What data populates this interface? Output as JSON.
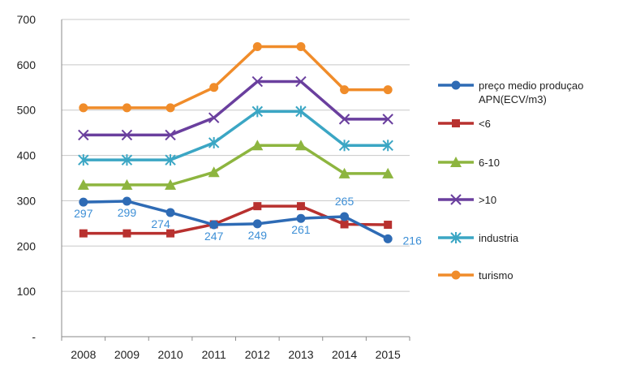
{
  "chart_data": {
    "type": "line",
    "title": "",
    "xlabel": "",
    "ylabel": "",
    "categories": [
      "2008",
      "2009",
      "2010",
      "2011",
      "2012",
      "2013",
      "2014",
      "2015"
    ],
    "ylim": [
      0,
      700
    ],
    "y_ticks": [
      "-",
      "100",
      "200",
      "300",
      "400",
      "500",
      "600",
      "700"
    ],
    "grid": true,
    "legend_position": "right",
    "series": [
      {
        "name": "preço medio produçao APN(ECV/m3)",
        "legend_lines": [
          "preço medio produçao",
          "APN(ECV/m3)"
        ],
        "color": "#2e6bb5",
        "marker": "circle",
        "values": [
          297,
          299,
          274,
          247,
          249,
          261,
          265,
          216
        ],
        "labels": [
          "297",
          "299",
          "274",
          "247",
          "249",
          "261",
          "265",
          "216"
        ],
        "label_color": "#3d8fd6"
      },
      {
        "name": "<6",
        "legend_lines": [
          "<6"
        ],
        "color": "#b8312f",
        "marker": "square",
        "values": [
          228,
          228,
          228,
          248,
          288,
          288,
          248,
          247
        ]
      },
      {
        "name": "6-10",
        "legend_lines": [
          "6-10"
        ],
        "color": "#8db53f",
        "marker": "triangle",
        "values": [
          335,
          335,
          335,
          363,
          422,
          422,
          360,
          360
        ]
      },
      {
        "name": ">10",
        "legend_lines": [
          ">10"
        ],
        "color": "#6a3f9e",
        "marker": "x",
        "values": [
          445,
          445,
          445,
          483,
          563,
          563,
          480,
          480
        ]
      },
      {
        "name": "industria",
        "legend_lines": [
          "industria"
        ],
        "color": "#3ba6c4",
        "marker": "star",
        "values": [
          390,
          390,
          390,
          428,
          497,
          497,
          422,
          422
        ]
      },
      {
        "name": "turismo",
        "legend_lines": [
          "turismo"
        ],
        "color": "#f08c2a",
        "marker": "circle",
        "values": [
          505,
          505,
          505,
          550,
          640,
          640,
          545,
          545
        ]
      }
    ]
  }
}
